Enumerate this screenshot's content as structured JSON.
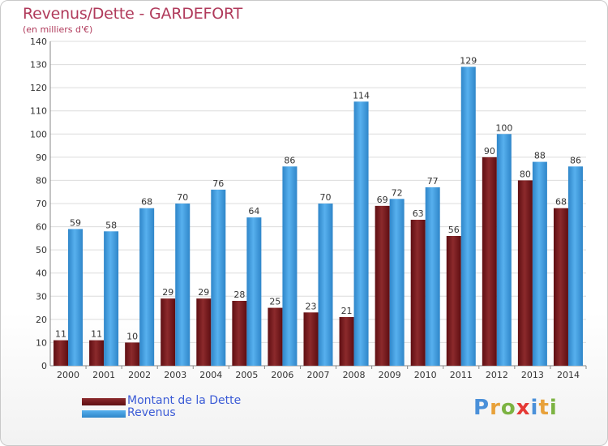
{
  "title": "Revenus/Dette - GARDEFORT",
  "subtitle": "(en milliers d'€)",
  "legend": {
    "debt_label": "Montant de la Dette",
    "revenue_label": "Revenus"
  },
  "logo": {
    "text": "Proxiti"
  },
  "colors": {
    "debt": "#7a1c1f",
    "revenue": "#3e9fe3",
    "title": "#b03a5b",
    "legend_text": "#3b5bd6"
  },
  "chart_data": {
    "type": "bar",
    "categories": [
      "2000",
      "2001",
      "2002",
      "2003",
      "2004",
      "2005",
      "2006",
      "2007",
      "2008",
      "2009",
      "2010",
      "2011",
      "2012",
      "2013",
      "2014"
    ],
    "series": [
      {
        "name": "Montant de la Dette",
        "values": [
          11,
          11,
          10,
          29,
          29,
          28,
          25,
          23,
          21,
          69,
          63,
          56,
          90,
          80,
          68
        ]
      },
      {
        "name": "Revenus",
        "values": [
          59,
          58,
          68,
          70,
          76,
          64,
          86,
          70,
          114,
          72,
          77,
          129,
          100,
          88,
          86
        ]
      }
    ],
    "ylim": [
      0,
      140
    ],
    "yticks": [
      0,
      10,
      20,
      30,
      40,
      50,
      60,
      70,
      80,
      90,
      100,
      110,
      120,
      130,
      140
    ],
    "grid": true,
    "legend_position": "bottom-left"
  }
}
